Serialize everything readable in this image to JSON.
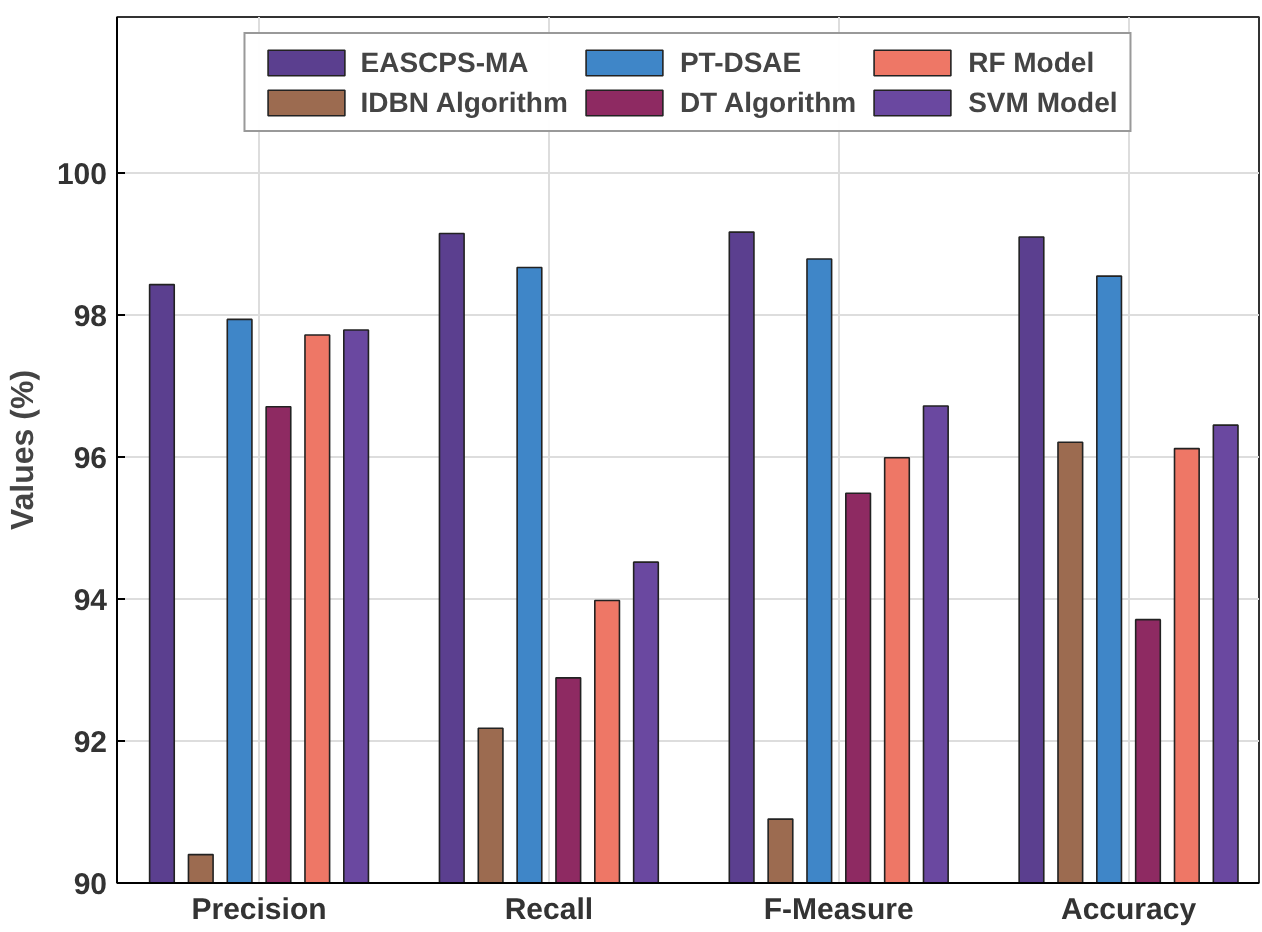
{
  "chart_data": {
    "type": "bar",
    "ylabel": "Values (%)",
    "categories": [
      "Precision",
      "Recall",
      "F-Measure",
      "Accuracy"
    ],
    "series": [
      {
        "name": "EASCPS-MA",
        "color": "#5b3f8f",
        "values": [
          98.43,
          99.15,
          99.17,
          99.1
        ]
      },
      {
        "name": "IDBN Algorithm",
        "color": "#9c6b50",
        "values": [
          90.4,
          92.18,
          90.9,
          96.21
        ]
      },
      {
        "name": "PT-DSAE",
        "color": "#3f86c8",
        "values": [
          97.94,
          98.67,
          98.79,
          98.55
        ]
      },
      {
        "name": "DT Algorithm",
        "color": "#8e2a62",
        "values": [
          96.71,
          92.89,
          95.49,
          93.71
        ]
      },
      {
        "name": "RF Model",
        "color": "#ee7766",
        "values": [
          97.72,
          93.98,
          95.99,
          96.12
        ]
      },
      {
        "name": "SVM Model",
        "color": "#6a48a0",
        "values": [
          97.79,
          94.52,
          96.72,
          96.45
        ]
      }
    ],
    "ylim": [
      90,
      102.2
    ],
    "yticks": [
      90,
      92,
      94,
      96,
      98,
      100
    ],
    "grid": true,
    "legend": "top"
  }
}
